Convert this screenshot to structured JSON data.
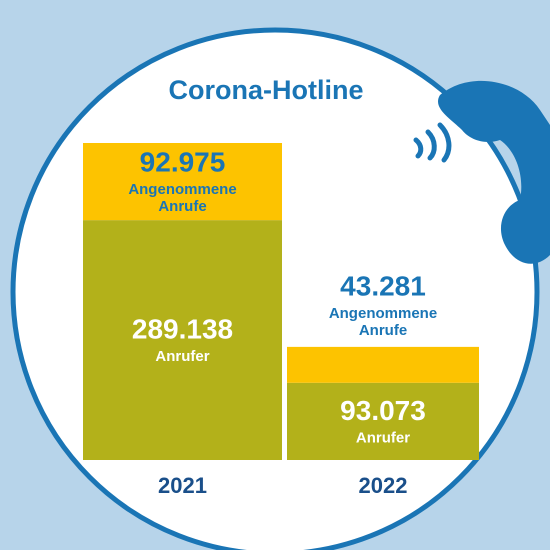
{
  "chart_data": {
    "type": "stacked-bar",
    "title": "Corona-Hotline",
    "categories": [
      "2021",
      "2022"
    ],
    "series": [
      {
        "name": "Anrufer",
        "color": "#b3b11a",
        "values": [
          289138,
          93073
        ],
        "value_labels": [
          "289.138",
          "93.073"
        ]
      },
      {
        "name": "Angenommene Anrufe",
        "color": "#fdc300",
        "values": [
          92975,
          43281
        ],
        "value_labels": [
          "92.975",
          "43.281"
        ]
      }
    ]
  }
}
